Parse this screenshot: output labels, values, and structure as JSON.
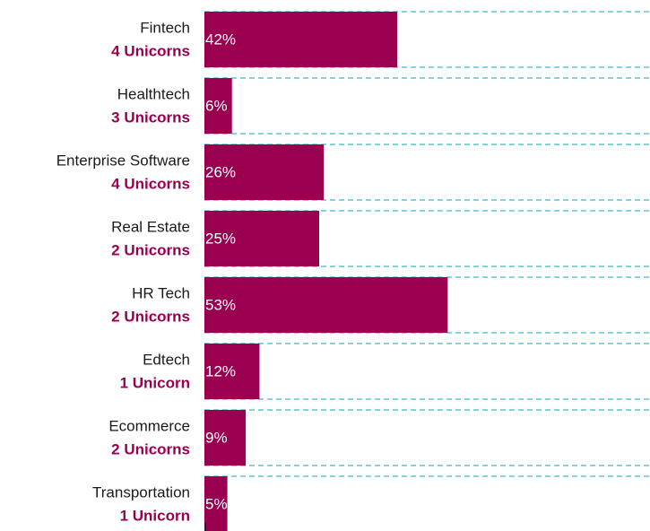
{
  "chart_data": {
    "type": "bar",
    "orientation": "horizontal",
    "categories": [
      "Fintech",
      "Healthtech",
      "Enterprise Software",
      "Real Estate",
      "HR Tech",
      "Edtech",
      "Ecommerce",
      "Transportation"
    ],
    "sublabels": [
      "4 Unicorns",
      "3 Unicorns",
      "4 Unicorns",
      "2 Unicorns",
      "2 Unicorns",
      "1 Unicorn",
      "2 Unicorns",
      "1 Unicorn"
    ],
    "values": [
      42,
      6,
      26,
      25,
      53,
      12,
      9,
      5
    ],
    "value_labels": [
      "42%",
      "6%",
      "26%",
      "25%",
      "53%",
      "12%",
      "9%",
      "5%"
    ],
    "color": "#9b0050",
    "xlim": [
      0,
      100
    ]
  }
}
